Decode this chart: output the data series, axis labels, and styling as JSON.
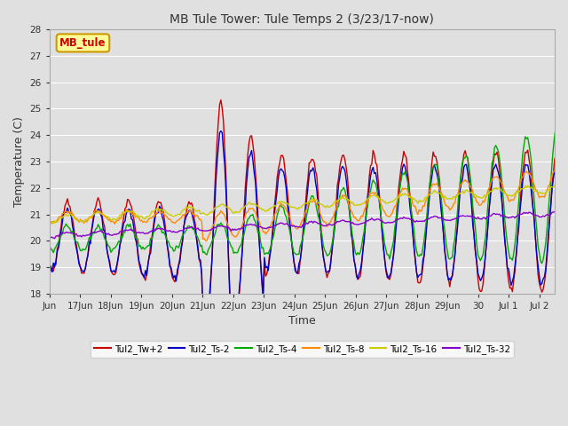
{
  "title": "MB Tule Tower: Tule Temps 2 (3/23/17-now)",
  "xlabel": "Time",
  "ylabel": "Temperature (C)",
  "ylim": [
    18.0,
    28.0
  ],
  "yticks": [
    18.0,
    19.0,
    20.0,
    21.0,
    22.0,
    23.0,
    24.0,
    25.0,
    26.0,
    27.0,
    28.0
  ],
  "xtick_labels": [
    "Jun",
    "17Jun",
    "18Jun",
    "19Jun",
    "20Jun",
    "21Jun",
    "22Jun",
    "23Jun",
    "24Jun",
    "25Jun",
    "26Jun",
    "27Jun",
    "28Jun",
    "29Jun",
    "30",
    "Jul 1",
    "Jul 2"
  ],
  "background_color": "#e0e0e0",
  "plot_bg_color": "#e0e0e0",
  "grid_color": "#ffffff",
  "series": [
    {
      "label": "Tul2_Tw+2",
      "color": "#cc0000"
    },
    {
      "label": "Tul2_Ts-2",
      "color": "#0000cc"
    },
    {
      "label": "Tul2_Ts-4",
      "color": "#00aa00"
    },
    {
      "label": "Tul2_Ts-8",
      "color": "#ff8800"
    },
    {
      "label": "Tul2_Ts-16",
      "color": "#cccc00"
    },
    {
      "label": "Tul2_Ts-32",
      "color": "#8800cc"
    }
  ],
  "legend_box_color": "#ffff99",
  "legend_box_edge": "#cc9900",
  "legend_text": "MB_tule",
  "legend_text_color": "#cc0000"
}
